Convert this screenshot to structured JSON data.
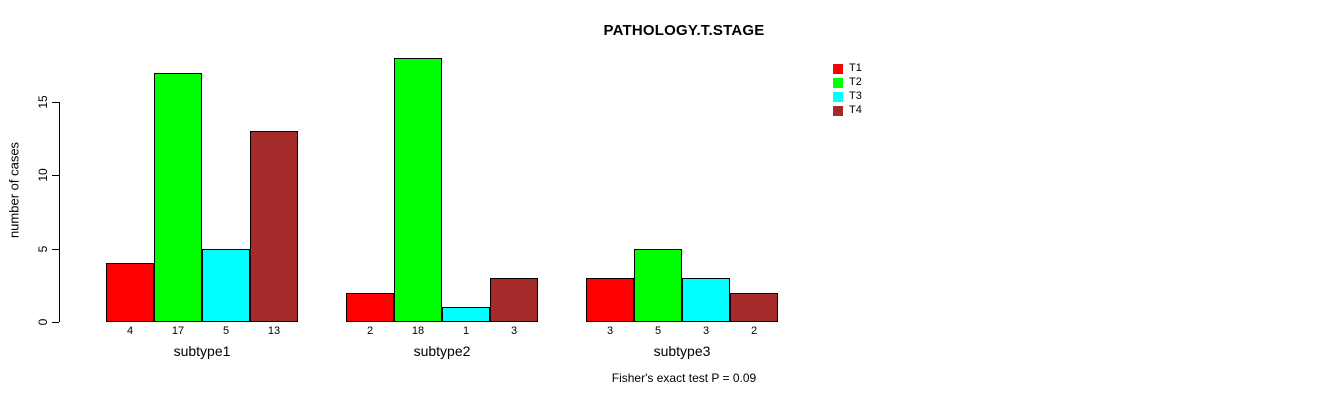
{
  "chart_data": {
    "type": "bar",
    "grouped": true,
    "title": "PATHOLOGY.T.STAGE",
    "ylabel": "number of cases",
    "xlabel": "",
    "annotation": "Fisher's exact test P = 0.09",
    "categories": [
      "subtype1",
      "subtype2",
      "subtype3"
    ],
    "series": [
      {
        "name": "T1",
        "color": "#FF0000",
        "values": [
          4,
          2,
          3
        ]
      },
      {
        "name": "T2",
        "color": "#00FF00",
        "values": [
          17,
          18,
          5
        ]
      },
      {
        "name": "T3",
        "color": "#00FFFF",
        "values": [
          5,
          1,
          3
        ]
      },
      {
        "name": "T4",
        "color": "#A52A2A",
        "values": [
          13,
          3,
          2
        ]
      }
    ],
    "yticks": [
      0,
      5,
      10,
      15
    ],
    "ylim": [
      0,
      18
    ],
    "grid": false,
    "bar_value_labels": true,
    "legend_position": "top-right"
  }
}
